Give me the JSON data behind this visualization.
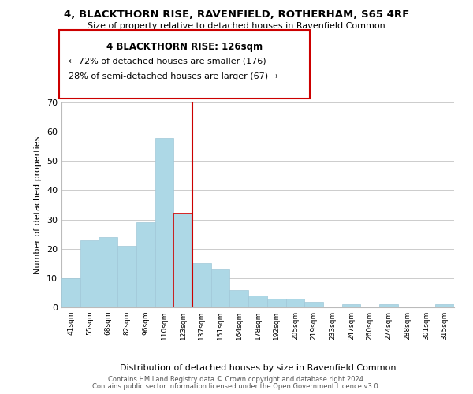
{
  "title1": "4, BLACKTHORN RISE, RAVENFIELD, ROTHERHAM, S65 4RF",
  "title2": "Size of property relative to detached houses in Ravenfield Common",
  "xlabel": "Distribution of detached houses by size in Ravenfield Common",
  "ylabel": "Number of detached properties",
  "bar_labels": [
    "41sqm",
    "55sqm",
    "68sqm",
    "82sqm",
    "96sqm",
    "110sqm",
    "123sqm",
    "137sqm",
    "151sqm",
    "164sqm",
    "178sqm",
    "192sqm",
    "205sqm",
    "219sqm",
    "233sqm",
    "247sqm",
    "260sqm",
    "274sqm",
    "288sqm",
    "301sqm",
    "315sqm"
  ],
  "bar_values": [
    10,
    23,
    24,
    21,
    29,
    58,
    32,
    15,
    13,
    6,
    4,
    3,
    3,
    2,
    0,
    1,
    0,
    1,
    0,
    0,
    1
  ],
  "bar_color": "#add8e6",
  "bar_edge_color": "#a0c8d8",
  "highlight_bar_index": 6,
  "highlight_color": "#cc0000",
  "annotation_title": "4 BLACKTHORN RISE: 126sqm",
  "annotation_line1": "← 72% of detached houses are smaller (176)",
  "annotation_line2": "28% of semi-detached houses are larger (67) →",
  "annotation_box_color": "#ffffff",
  "annotation_box_edge_color": "#cc0000",
  "ylim": [
    0,
    70
  ],
  "yticks": [
    0,
    10,
    20,
    30,
    40,
    50,
    60,
    70
  ],
  "footnote1": "Contains HM Land Registry data © Crown copyright and database right 2024.",
  "footnote2": "Contains public sector information licensed under the Open Government Licence v3.0.",
  "bg_color": "#ffffff",
  "grid_color": "#cccccc"
}
